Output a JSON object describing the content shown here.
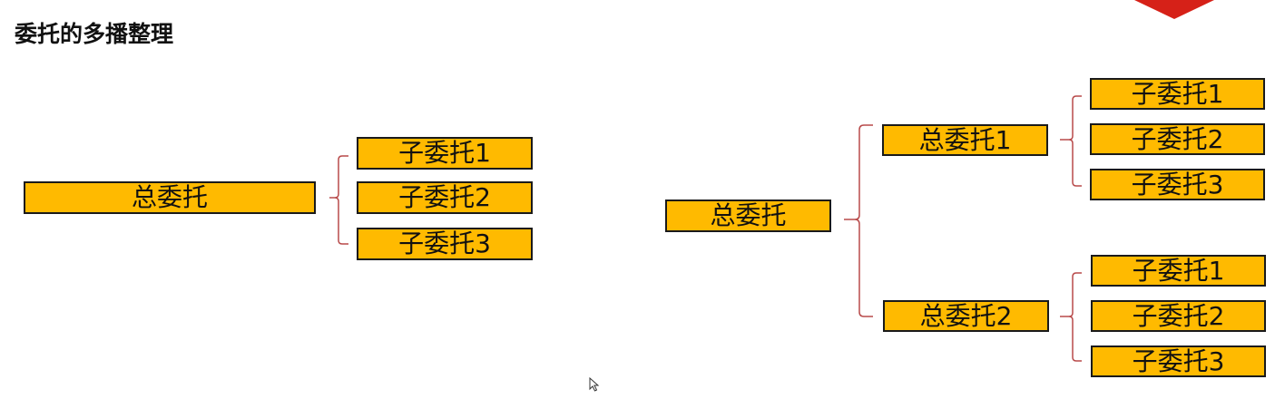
{
  "title": "委托的多播整理",
  "colors": {
    "box_fill": "#ffba00",
    "box_border": "#1a1a1a",
    "bracket": "#b84a4a",
    "corner_shape": "#d62118"
  },
  "left_diagram": {
    "root": "总委托",
    "children": [
      "子委托1",
      "子委托2",
      "子委托3"
    ]
  },
  "right_diagram": {
    "root": "总委托",
    "groups": [
      {
        "label": "总委托1",
        "children": [
          "子委托1",
          "子委托2",
          "子委托3"
        ]
      },
      {
        "label": "总委托2",
        "children": [
          "子委托1",
          "子委托2",
          "子委托3"
        ]
      }
    ]
  }
}
